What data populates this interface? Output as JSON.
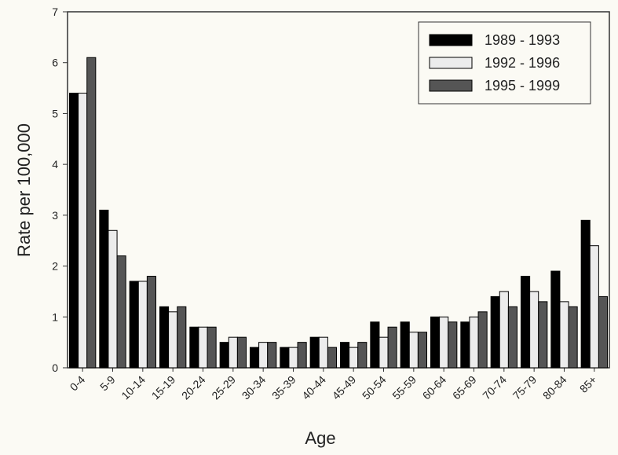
{
  "chart_data": {
    "type": "bar",
    "x_label": "Age",
    "y_label": "Rate per 100,000",
    "categories": [
      "0-4",
      "5-9",
      "10-14",
      "15-19",
      "20-24",
      "25-29",
      "30-34",
      "35-39",
      "40-44",
      "45-49",
      "50-54",
      "55-59",
      "60-64",
      "65-69",
      "70-74",
      "75-79",
      "80-84",
      "85+"
    ],
    "series": [
      {
        "name": "1989 - 1993",
        "color": "#000000",
        "values": [
          5.4,
          3.1,
          1.7,
          1.2,
          0.8,
          0.5,
          0.4,
          0.4,
          0.6,
          0.5,
          0.9,
          0.9,
          1.0,
          0.9,
          1.4,
          1.8,
          1.9,
          2.9
        ]
      },
      {
        "name": "1992 - 1996",
        "color": "#ececec",
        "values": [
          5.4,
          2.7,
          1.7,
          1.1,
          0.8,
          0.6,
          0.5,
          0.4,
          0.6,
          0.4,
          0.6,
          0.7,
          1.0,
          1.0,
          1.5,
          1.5,
          1.3,
          2.4
        ]
      },
      {
        "name": "1995 - 1999",
        "color": "#555555",
        "values": [
          6.1,
          2.2,
          1.8,
          1.2,
          0.8,
          0.6,
          0.5,
          0.5,
          0.4,
          0.5,
          0.8,
          0.7,
          0.9,
          1.1,
          1.2,
          1.3,
          1.2,
          1.4
        ]
      }
    ],
    "ylim": [
      0,
      7
    ],
    "yticks": [
      0,
      1,
      2,
      3,
      4,
      5,
      6,
      7
    ],
    "legend": "upper right"
  }
}
